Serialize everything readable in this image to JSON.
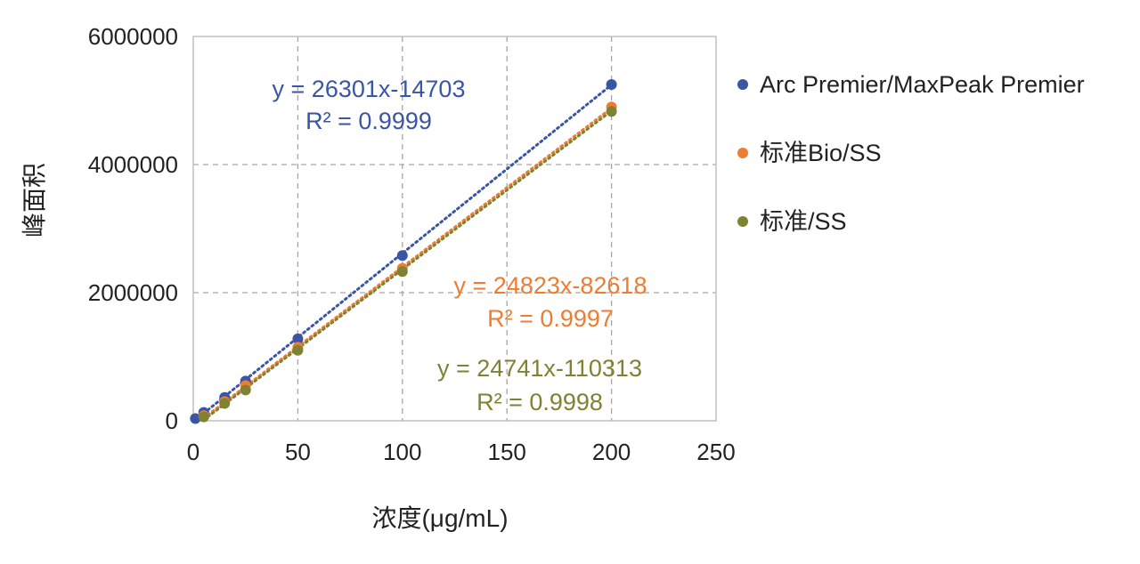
{
  "chart_data": {
    "type": "scatter",
    "xlabel": "浓度(μg/mL)",
    "ylabel": "峰面积",
    "xlim": [
      0,
      250
    ],
    "ylim": [
      0,
      6000000
    ],
    "x_ticks": [
      "0",
      "50",
      "100",
      "150",
      "200",
      "250"
    ],
    "y_ticks": [
      "0",
      "2000000",
      "4000000",
      "6000000"
    ],
    "grid": true,
    "legend_position": "right",
    "series": [
      {
        "name": "Arc Premier/MaxPeak Premier",
        "color": "#3A55A4",
        "x": [
          1,
          5,
          15,
          25,
          50,
          100,
          200
        ],
        "y": [
          35000,
          130000,
          365000,
          620000,
          1280000,
          2580000,
          5250000
        ],
        "trendline": {
          "slope": 26301,
          "intercept": -14703,
          "equation": "y = 26301x-14703",
          "r2": "R² = 0.9999"
        }
      },
      {
        "name": "标准Bio/SS",
        "color": "#ED7D31",
        "x": [
          5,
          15,
          25,
          50,
          100,
          200
        ],
        "y": [
          80000,
          300000,
          550000,
          1150000,
          2380000,
          4900000
        ],
        "trendline": {
          "slope": 24823,
          "intercept": -82618,
          "equation": "y = 24823x-82618",
          "r2": "R² = 0.9997"
        }
      },
      {
        "name": "标准/SS",
        "color": "#7F8233",
        "x": [
          5,
          15,
          25,
          50,
          100,
          200
        ],
        "y": [
          60000,
          270000,
          480000,
          1100000,
          2330000,
          4830000
        ],
        "trendline": {
          "slope": 24741,
          "intercept": -110313,
          "equation": "y = 24741x-110313",
          "r2": "R² = 0.9998"
        }
      }
    ]
  }
}
